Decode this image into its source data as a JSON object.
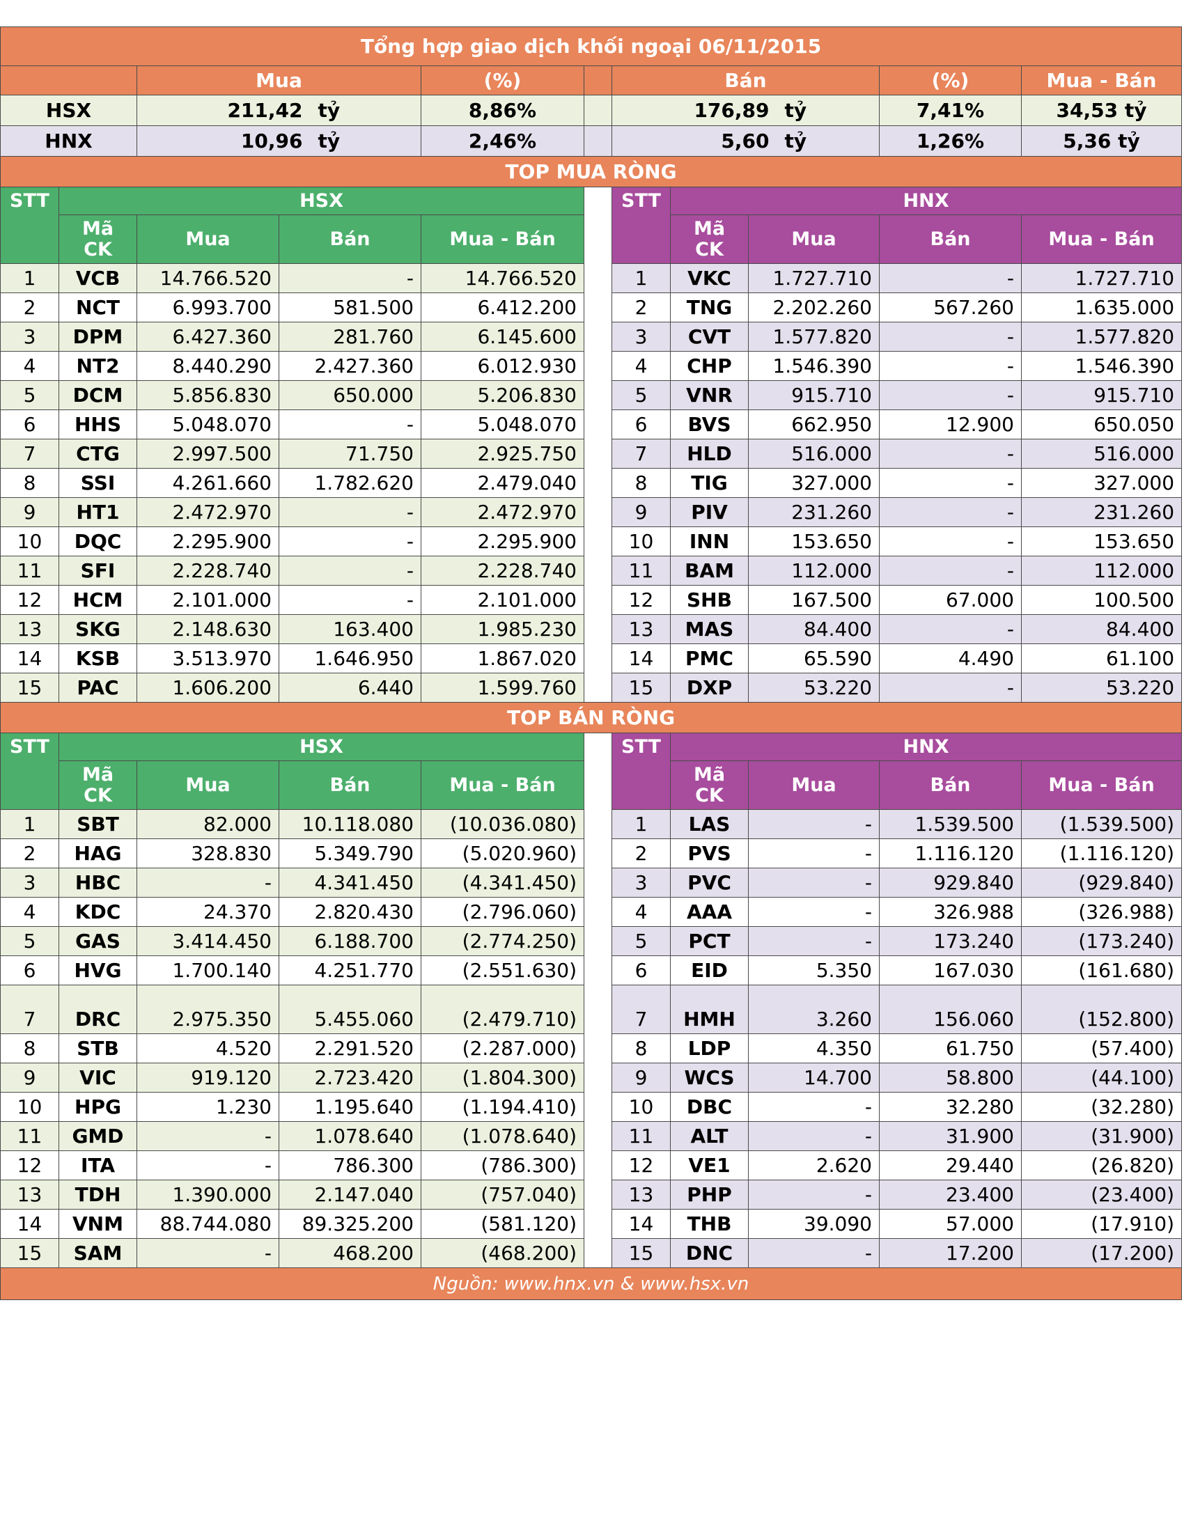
{
  "title": "Tổng hợp giao dịch khối ngoại 06/11/2015",
  "summary": {
    "headers": {
      "mua": "Mua",
      "pct1": "(%)",
      "ban": "Bán",
      "pct2": "(%)",
      "net": "Mua - Bán"
    },
    "hsx": {
      "label": "HSX",
      "mua": "211,42",
      "mua_unit": "tỷ",
      "mua_pct": "8,86%",
      "ban": "176,89",
      "ban_unit": "tỷ",
      "ban_pct": "7,41%",
      "net": "34,53 tỷ"
    },
    "hnx": {
      "label": "HNX",
      "mua": "10,96",
      "mua_unit": "tỷ",
      "mua_pct": "2,46%",
      "ban": "5,60",
      "ban_unit": "tỷ",
      "ban_pct": "1,26%",
      "net": "5,36 tỷ"
    }
  },
  "top_buy": {
    "title": "TOP MUA RÒNG",
    "left_group": "HSX",
    "right_group": "HNX",
    "headers": {
      "stt": "STT",
      "ma": "Mã",
      "ck": "CK",
      "mua": "Mua",
      "ban": "Bán",
      "net": "Mua - Bán"
    },
    "rows": [
      {
        "stt": "1",
        "l_code": "VCB",
        "l_mua": "14.766.520",
        "l_ban": "-",
        "l_net": "14.766.520",
        "r_code": "VKC",
        "r_mua": "1.727.710",
        "r_ban": "-",
        "r_net": "1.727.710"
      },
      {
        "stt": "2",
        "l_code": "NCT",
        "l_mua": "6.993.700",
        "l_ban": "581.500",
        "l_net": "6.412.200",
        "r_code": "TNG",
        "r_mua": "2.202.260",
        "r_ban": "567.260",
        "r_net": "1.635.000"
      },
      {
        "stt": "3",
        "l_code": "DPM",
        "l_mua": "6.427.360",
        "l_ban": "281.760",
        "l_net": "6.145.600",
        "r_code": "CVT",
        "r_mua": "1.577.820",
        "r_ban": "-",
        "r_net": "1.577.820"
      },
      {
        "stt": "4",
        "l_code": "NT2",
        "l_mua": "8.440.290",
        "l_ban": "2.427.360",
        "l_net": "6.012.930",
        "r_code": "CHP",
        "r_mua": "1.546.390",
        "r_ban": "-",
        "r_net": "1.546.390"
      },
      {
        "stt": "5",
        "l_code": "DCM",
        "l_mua": "5.856.830",
        "l_ban": "650.000",
        "l_net": "5.206.830",
        "r_code": "VNR",
        "r_mua": "915.710",
        "r_ban": "-",
        "r_net": "915.710"
      },
      {
        "stt": "6",
        "l_code": "HHS",
        "l_mua": "5.048.070",
        "l_ban": "-",
        "l_net": "5.048.070",
        "r_code": "BVS",
        "r_mua": "662.950",
        "r_ban": "12.900",
        "r_net": "650.050"
      },
      {
        "stt": "7",
        "l_code": "CTG",
        "l_mua": "2.997.500",
        "l_ban": "71.750",
        "l_net": "2.925.750",
        "r_code": "HLD",
        "r_mua": "516.000",
        "r_ban": "-",
        "r_net": "516.000"
      },
      {
        "stt": "8",
        "l_code": "SSI",
        "l_mua": "4.261.660",
        "l_ban": "1.782.620",
        "l_net": "2.479.040",
        "r_code": "TIG",
        "r_mua": "327.000",
        "r_ban": "-",
        "r_net": "327.000"
      },
      {
        "stt": "9",
        "l_code": "HT1",
        "l_mua": "2.472.970",
        "l_ban": "-",
        "l_net": "2.472.970",
        "r_code": "PIV",
        "r_mua": "231.260",
        "r_ban": "-",
        "r_net": "231.260"
      },
      {
        "stt": "10",
        "l_code": "DQC",
        "l_mua": "2.295.900",
        "l_ban": "-",
        "l_net": "2.295.900",
        "r_code": "INN",
        "r_mua": "153.650",
        "r_ban": "-",
        "r_net": "153.650"
      },
      {
        "stt": "11",
        "l_code": "SFI",
        "l_mua": "2.228.740",
        "l_ban": "-",
        "l_net": "2.228.740",
        "r_code": "BAM",
        "r_mua": "112.000",
        "r_ban": "-",
        "r_net": "112.000"
      },
      {
        "stt": "12",
        "l_code": "HCM",
        "l_mua": "2.101.000",
        "l_ban": "-",
        "l_net": "2.101.000",
        "r_code": "SHB",
        "r_mua": "167.500",
        "r_ban": "67.000",
        "r_net": "100.500"
      },
      {
        "stt": "13",
        "l_code": "SKG",
        "l_mua": "2.148.630",
        "l_ban": "163.400",
        "l_net": "1.985.230",
        "r_code": "MAS",
        "r_mua": "84.400",
        "r_ban": "-",
        "r_net": "84.400"
      },
      {
        "stt": "14",
        "l_code": "KSB",
        "l_mua": "3.513.970",
        "l_ban": "1.646.950",
        "l_net": "1.867.020",
        "r_code": "PMC",
        "r_mua": "65.590",
        "r_ban": "4.490",
        "r_net": "61.100"
      },
      {
        "stt": "15",
        "l_code": "PAC",
        "l_mua": "1.606.200",
        "l_ban": "6.440",
        "l_net": "1.599.760",
        "r_code": "DXP",
        "r_mua": "53.220",
        "r_ban": "-",
        "r_net": "53.220"
      }
    ]
  },
  "top_sell": {
    "title": "TOP BÁN RÒNG",
    "left_group": "HSX",
    "right_group": "HNX",
    "headers": {
      "stt": "STT",
      "ma": "Mã",
      "ck": "CK",
      "mua": "Mua",
      "ban": "Bán",
      "net": "Mua - Bán"
    },
    "rows": [
      {
        "stt": "1",
        "l_code": "SBT",
        "l_mua": "82.000",
        "l_ban": "10.118.080",
        "l_net": "(10.036.080)",
        "r_code": "LAS",
        "r_mua": "-",
        "r_ban": "1.539.500",
        "r_net": "(1.539.500)"
      },
      {
        "stt": "2",
        "l_code": "HAG",
        "l_mua": "328.830",
        "l_ban": "5.349.790",
        "l_net": "(5.020.960)",
        "r_code": "PVS",
        "r_mua": "-",
        "r_ban": "1.116.120",
        "r_net": "(1.116.120)"
      },
      {
        "stt": "3",
        "l_code": "HBC",
        "l_mua": "-",
        "l_ban": "4.341.450",
        "l_net": "(4.341.450)",
        "r_code": "PVC",
        "r_mua": "-",
        "r_ban": "929.840",
        "r_net": "(929.840)"
      },
      {
        "stt": "4",
        "l_code": "KDC",
        "l_mua": "24.370",
        "l_ban": "2.820.430",
        "l_net": "(2.796.060)",
        "r_code": "AAA",
        "r_mua": "-",
        "r_ban": "326.988",
        "r_net": "(326.988)"
      },
      {
        "stt": "5",
        "l_code": "GAS",
        "l_mua": "3.414.450",
        "l_ban": "6.188.700",
        "l_net": "(2.774.250)",
        "r_code": "PCT",
        "r_mua": "-",
        "r_ban": "173.240",
        "r_net": "(173.240)"
      },
      {
        "stt": "6",
        "l_code": "HVG",
        "l_mua": "1.700.140",
        "l_ban": "4.251.770",
        "l_net": "(2.551.630)",
        "r_code": "EID",
        "r_mua": "5.350",
        "r_ban": "167.030",
        "r_net": "(161.680)"
      },
      {
        "stt": "7",
        "l_code": "DRC",
        "l_mua": "2.975.350",
        "l_ban": "5.455.060",
        "l_net": "(2.479.710)",
        "r_code": "HMH",
        "r_mua": "3.260",
        "r_ban": "156.060",
        "r_net": "(152.800)"
      },
      {
        "stt": "8",
        "l_code": "STB",
        "l_mua": "4.520",
        "l_ban": "2.291.520",
        "l_net": "(2.287.000)",
        "r_code": "LDP",
        "r_mua": "4.350",
        "r_ban": "61.750",
        "r_net": "(57.400)"
      },
      {
        "stt": "9",
        "l_code": "VIC",
        "l_mua": "919.120",
        "l_ban": "2.723.420",
        "l_net": "(1.804.300)",
        "r_code": "WCS",
        "r_mua": "14.700",
        "r_ban": "58.800",
        "r_net": "(44.100)"
      },
      {
        "stt": "10",
        "l_code": "HPG",
        "l_mua": "1.230",
        "l_ban": "1.195.640",
        "l_net": "(1.194.410)",
        "r_code": "DBC",
        "r_mua": "-",
        "r_ban": "32.280",
        "r_net": "(32.280)"
      },
      {
        "stt": "11",
        "l_code": "GMD",
        "l_mua": "-",
        "l_ban": "1.078.640",
        "l_net": "(1.078.640)",
        "r_code": "ALT",
        "r_mua": "-",
        "r_ban": "31.900",
        "r_net": "(31.900)"
      },
      {
        "stt": "12",
        "l_code": "ITA",
        "l_mua": "-",
        "l_ban": "786.300",
        "l_net": "(786.300)",
        "r_code": "VE1",
        "r_mua": "2.620",
        "r_ban": "29.440",
        "r_net": "(26.820)"
      },
      {
        "stt": "13",
        "l_code": "TDH",
        "l_mua": "1.390.000",
        "l_ban": "2.147.040",
        "l_net": "(757.040)",
        "r_code": "PHP",
        "r_mua": "-",
        "r_ban": "23.400",
        "r_net": "(23.400)"
      },
      {
        "stt": "14",
        "l_code": "VNM",
        "l_mua": "88.744.080",
        "l_ban": "89.325.200",
        "l_net": "(581.120)",
        "r_code": "THB",
        "r_mua": "39.090",
        "r_ban": "57.000",
        "r_net": "(17.910)"
      },
      {
        "stt": "15",
        "l_code": "SAM",
        "l_mua": "-",
        "l_ban": "468.200",
        "l_net": "(468.200)",
        "r_code": "DNC",
        "r_mua": "-",
        "r_ban": "17.200",
        "r_net": "(17.200)"
      }
    ]
  },
  "source": "Nguồn: www.hnx.vn   &   www.hsx.vn",
  "colors": {
    "orange": "#e8855a",
    "green": "#4caf6c",
    "purple": "#a84c9d",
    "green_light": "#ebf1de",
    "purple_light": "#e4dfec"
  }
}
